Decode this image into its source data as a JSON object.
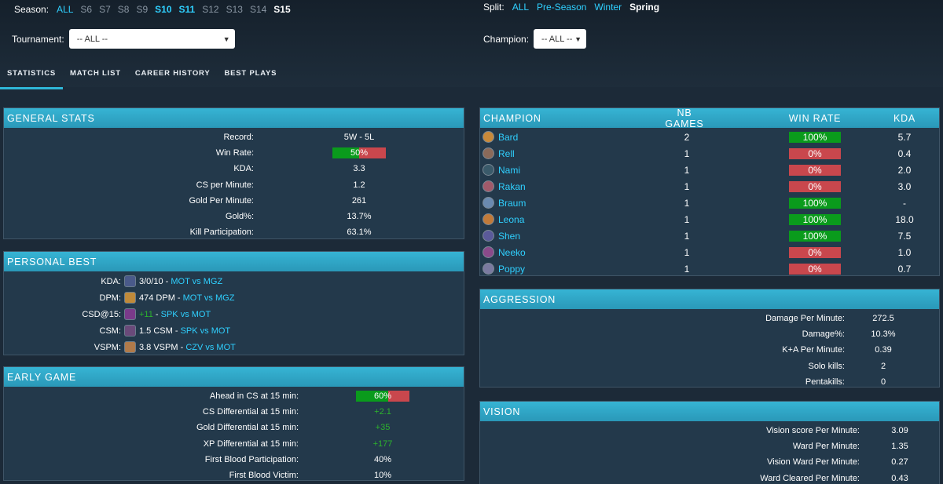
{
  "filters": {
    "season_label": "Season:",
    "seasons": [
      {
        "label": "ALL",
        "state": "active"
      },
      {
        "label": "S6",
        "state": "inactive"
      },
      {
        "label": "S7",
        "state": "inactive"
      },
      {
        "label": "S8",
        "state": "inactive"
      },
      {
        "label": "S9",
        "state": "inactive"
      },
      {
        "label": "S10",
        "state": "active-bold"
      },
      {
        "label": "S11",
        "state": "active-bold"
      },
      {
        "label": "S12",
        "state": "inactive"
      },
      {
        "label": "S13",
        "state": "inactive"
      },
      {
        "label": "S14",
        "state": "inactive"
      },
      {
        "label": "S15",
        "state": "current"
      }
    ],
    "split_label": "Split:",
    "splits": [
      {
        "label": "ALL",
        "state": "active"
      },
      {
        "label": "Pre-Season",
        "state": "active"
      },
      {
        "label": "Winter",
        "state": "active"
      },
      {
        "label": "Spring",
        "state": "current"
      }
    ],
    "tournament_label": "Tournament:",
    "tournament_value": "-- ALL --",
    "champion_label": "Champion:",
    "champion_value": "-- ALL --"
  },
  "tabs": [
    "STATISTICS",
    "MATCH LIST",
    "CAREER HISTORY",
    "BEST PLAYS"
  ],
  "general_stats": {
    "title": "GENERAL STATS",
    "rows": [
      {
        "label": "Record:",
        "value": "5W - 5L"
      },
      {
        "label": "Win Rate:",
        "value": "50%",
        "bar": 50
      },
      {
        "label": "KDA:",
        "value": "3.3"
      },
      {
        "label": "CS per Minute:",
        "value": "1.2"
      },
      {
        "label": "Gold Per Minute:",
        "value": "261"
      },
      {
        "label": "Gold%:",
        "value": "13.7%"
      },
      {
        "label": "Kill Participation:",
        "value": "63.1%"
      }
    ]
  },
  "personal_best": {
    "title": "PERSONAL BEST",
    "rows": [
      {
        "label": "KDA:",
        "value": "3/0/10",
        "sep": " - ",
        "match": "MOT vs MGZ",
        "icon": "champion-portrait-icon"
      },
      {
        "label": "DPM:",
        "value": "474 DPM",
        "sep": " - ",
        "match": "MOT vs MGZ",
        "icon": "champion-portrait-icon"
      },
      {
        "label": "CSD@15:",
        "value": "+11",
        "sep": " - ",
        "match": "SPK vs MOT",
        "icon": "champion-portrait-icon",
        "green": true
      },
      {
        "label": "CSM:",
        "value": "1.5 CSM",
        "sep": " - ",
        "match": "SPK vs MOT",
        "icon": "champion-portrait-icon"
      },
      {
        "label": "VSPM:",
        "value": "3.8 VSPM",
        "sep": " - ",
        "match": "CZV vs MOT",
        "icon": "champion-portrait-icon"
      }
    ]
  },
  "early_game": {
    "title": "EARLY GAME",
    "rows": [
      {
        "label": "Ahead in CS at 15 min:",
        "value": "60%",
        "bar": 60
      },
      {
        "label": "CS Differential at 15 min:",
        "value": "+2.1",
        "green": true
      },
      {
        "label": "Gold Differential at 15 min:",
        "value": "+35",
        "green": true
      },
      {
        "label": "XP Differential at 15 min:",
        "value": "+177",
        "green": true
      },
      {
        "label": "First Blood Participation:",
        "value": "40%"
      },
      {
        "label": "First Blood Victim:",
        "value": "10%"
      }
    ]
  },
  "champions": {
    "headers": [
      "CHAMPION",
      "NB GAMES",
      "WIN RATE",
      "KDA"
    ],
    "rows": [
      {
        "name": "Bard",
        "games": "2",
        "winrate": "100%",
        "win": true,
        "kda": "5.7",
        "color": "#c98a3a"
      },
      {
        "name": "Rell",
        "games": "1",
        "winrate": "0%",
        "win": false,
        "kda": "0.4",
        "color": "#8a6a5a"
      },
      {
        "name": "Nami",
        "games": "1",
        "winrate": "0%",
        "win": false,
        "kda": "2.0",
        "color": "#3a5a6a"
      },
      {
        "name": "Rakan",
        "games": "1",
        "winrate": "0%",
        "win": false,
        "kda": "3.0",
        "color": "#a05a6a"
      },
      {
        "name": "Braum",
        "games": "1",
        "winrate": "100%",
        "win": true,
        "kda": "-",
        "color": "#6a8ab0"
      },
      {
        "name": "Leona",
        "games": "1",
        "winrate": "100%",
        "win": true,
        "kda": "18.0",
        "color": "#c07a3a"
      },
      {
        "name": "Shen",
        "games": "1",
        "winrate": "100%",
        "win": true,
        "kda": "7.5",
        "color": "#5a5a9a"
      },
      {
        "name": "Neeko",
        "games": "1",
        "winrate": "0%",
        "win": false,
        "kda": "1.0",
        "color": "#8a4a8a"
      },
      {
        "name": "Poppy",
        "games": "1",
        "winrate": "0%",
        "win": false,
        "kda": "0.7",
        "color": "#7a7aa0"
      }
    ]
  },
  "aggression": {
    "title": "AGGRESSION",
    "rows": [
      {
        "label": "Damage Per Minute:",
        "value": "272.5"
      },
      {
        "label": "Damage%:",
        "value": "10.3%"
      },
      {
        "label": "K+A Per Minute:",
        "value": "0.39"
      },
      {
        "label": "Solo kills:",
        "value": "2"
      },
      {
        "label": "Pentakills:",
        "value": "0"
      }
    ]
  },
  "vision": {
    "title": "VISION",
    "rows": [
      {
        "label": "Vision score Per Minute:",
        "value": "3.09"
      },
      {
        "label": "Ward Per Minute:",
        "value": "1.35"
      },
      {
        "label": "Vision Ward Per Minute:",
        "value": "0.27"
      },
      {
        "label": "Ward Cleared Per Minute:",
        "value": "0.43"
      }
    ]
  },
  "colors": {
    "accent": "#2fd0ff",
    "win_green": "#0a9b1c",
    "loss_red": "#c9474d",
    "panel_header": "#36b4d4",
    "background": "#1c2a38"
  }
}
